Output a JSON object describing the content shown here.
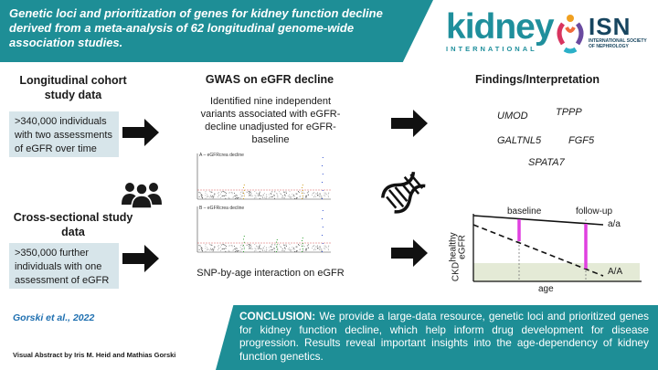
{
  "title": "Genetic loci and prioritization of genes for kidney function decline derived from a meta-analysis of 62 longitudinal genome-wide association studies.",
  "logos": {
    "kidney_word": "kidney",
    "kidney_sub": "INTERNATIONAL",
    "isn_word": "ISN",
    "isn_sub": "INTERNATIONAL SOCIETY OF NEPHROLOGY"
  },
  "left": {
    "longitudinal_header": "Longitudinal cohort study data",
    "longitudinal_box": ">340,000 individuals with two assessments of eGFR over time",
    "cross_header": "Cross-sectional study data",
    "cross_box": ">350,000 further individuals with one assessment of eGFR",
    "people_icon": "people-icon"
  },
  "middle": {
    "header": "GWAS on eGFR decline",
    "description": "Identified nine independent variants associated with eGFR-decline unadjusted for eGFR-baseline",
    "plot_a_label": "A – eGFRcrea decline",
    "plot_b_label": "B – eGFRcrea decline",
    "caption": "SNP-by-age interaction on eGFR"
  },
  "right": {
    "header": "Findings/Interpretation",
    "genes": [
      "UMOD",
      "TPPP",
      "GALTNL5",
      "FGF5",
      "SPATA7"
    ],
    "dna_icon": "dna-icon",
    "diagram": {
      "label_baseline": "baseline",
      "label_followup": "follow-up",
      "label_healthy": "healthy",
      "label_egfr": "eGFR",
      "label_ckd": "CKD",
      "label_age": "age",
      "label_aa": "a/a",
      "label_AA": "A/A"
    }
  },
  "citation": "Gorski et al., 2022",
  "credit": "Visual Abstract by Iris M. Heid and Mathias Gorski",
  "conclusion_label": "CONCLUSION:",
  "conclusion_text": " We provide a large-data resource, genetic loci and prioritized genes for kidney function decline, which help inform drug development for disease progression. Results reveal important insights into the age-dependency of kidney function genetics.",
  "colors": {
    "teal": "#1e8e96",
    "box": "#d7e5ea",
    "magenta": "#e040e0",
    "blue_link": "#1e6fb0"
  }
}
